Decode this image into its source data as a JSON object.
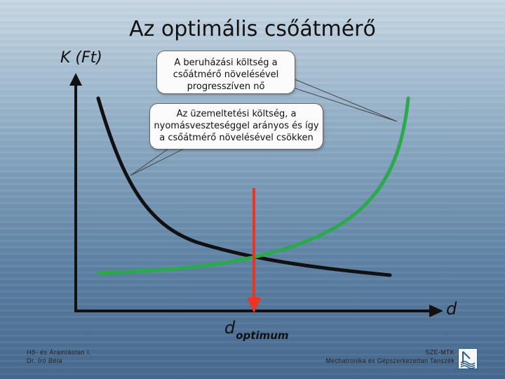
{
  "slide": {
    "title": "Az optimális csőátmérő"
  },
  "axes": {
    "y_label": "K (Ft)",
    "x_label": "d"
  },
  "optimum": {
    "symbol": "d",
    "subscript": "optimum"
  },
  "callouts": [
    {
      "lines": [
        "A beruházási költség a",
        "csőátmérő növelésével",
        "progresszíven nő"
      ]
    },
    {
      "lines": [
        "Az üzemeltetési költség, a",
        "nyomásveszteséggel arányos és így",
        "a csőátmérő növelésével csökken"
      ]
    }
  ],
  "colors": {
    "investment_curve": "#2aab4a",
    "operating_curve": "#111111",
    "optimum_arrow": "#ee3322",
    "axes": "#111111"
  },
  "footer": {
    "left_line1": "Hő- és Áramlástan I.",
    "left_line2_prefix": "Dr. ",
    "left_line2_name": "Író Béla",
    "right_line1": "SZE-MTK",
    "right_line2": "Mechatronika és Gépszerkezettan Tanszék"
  }
}
